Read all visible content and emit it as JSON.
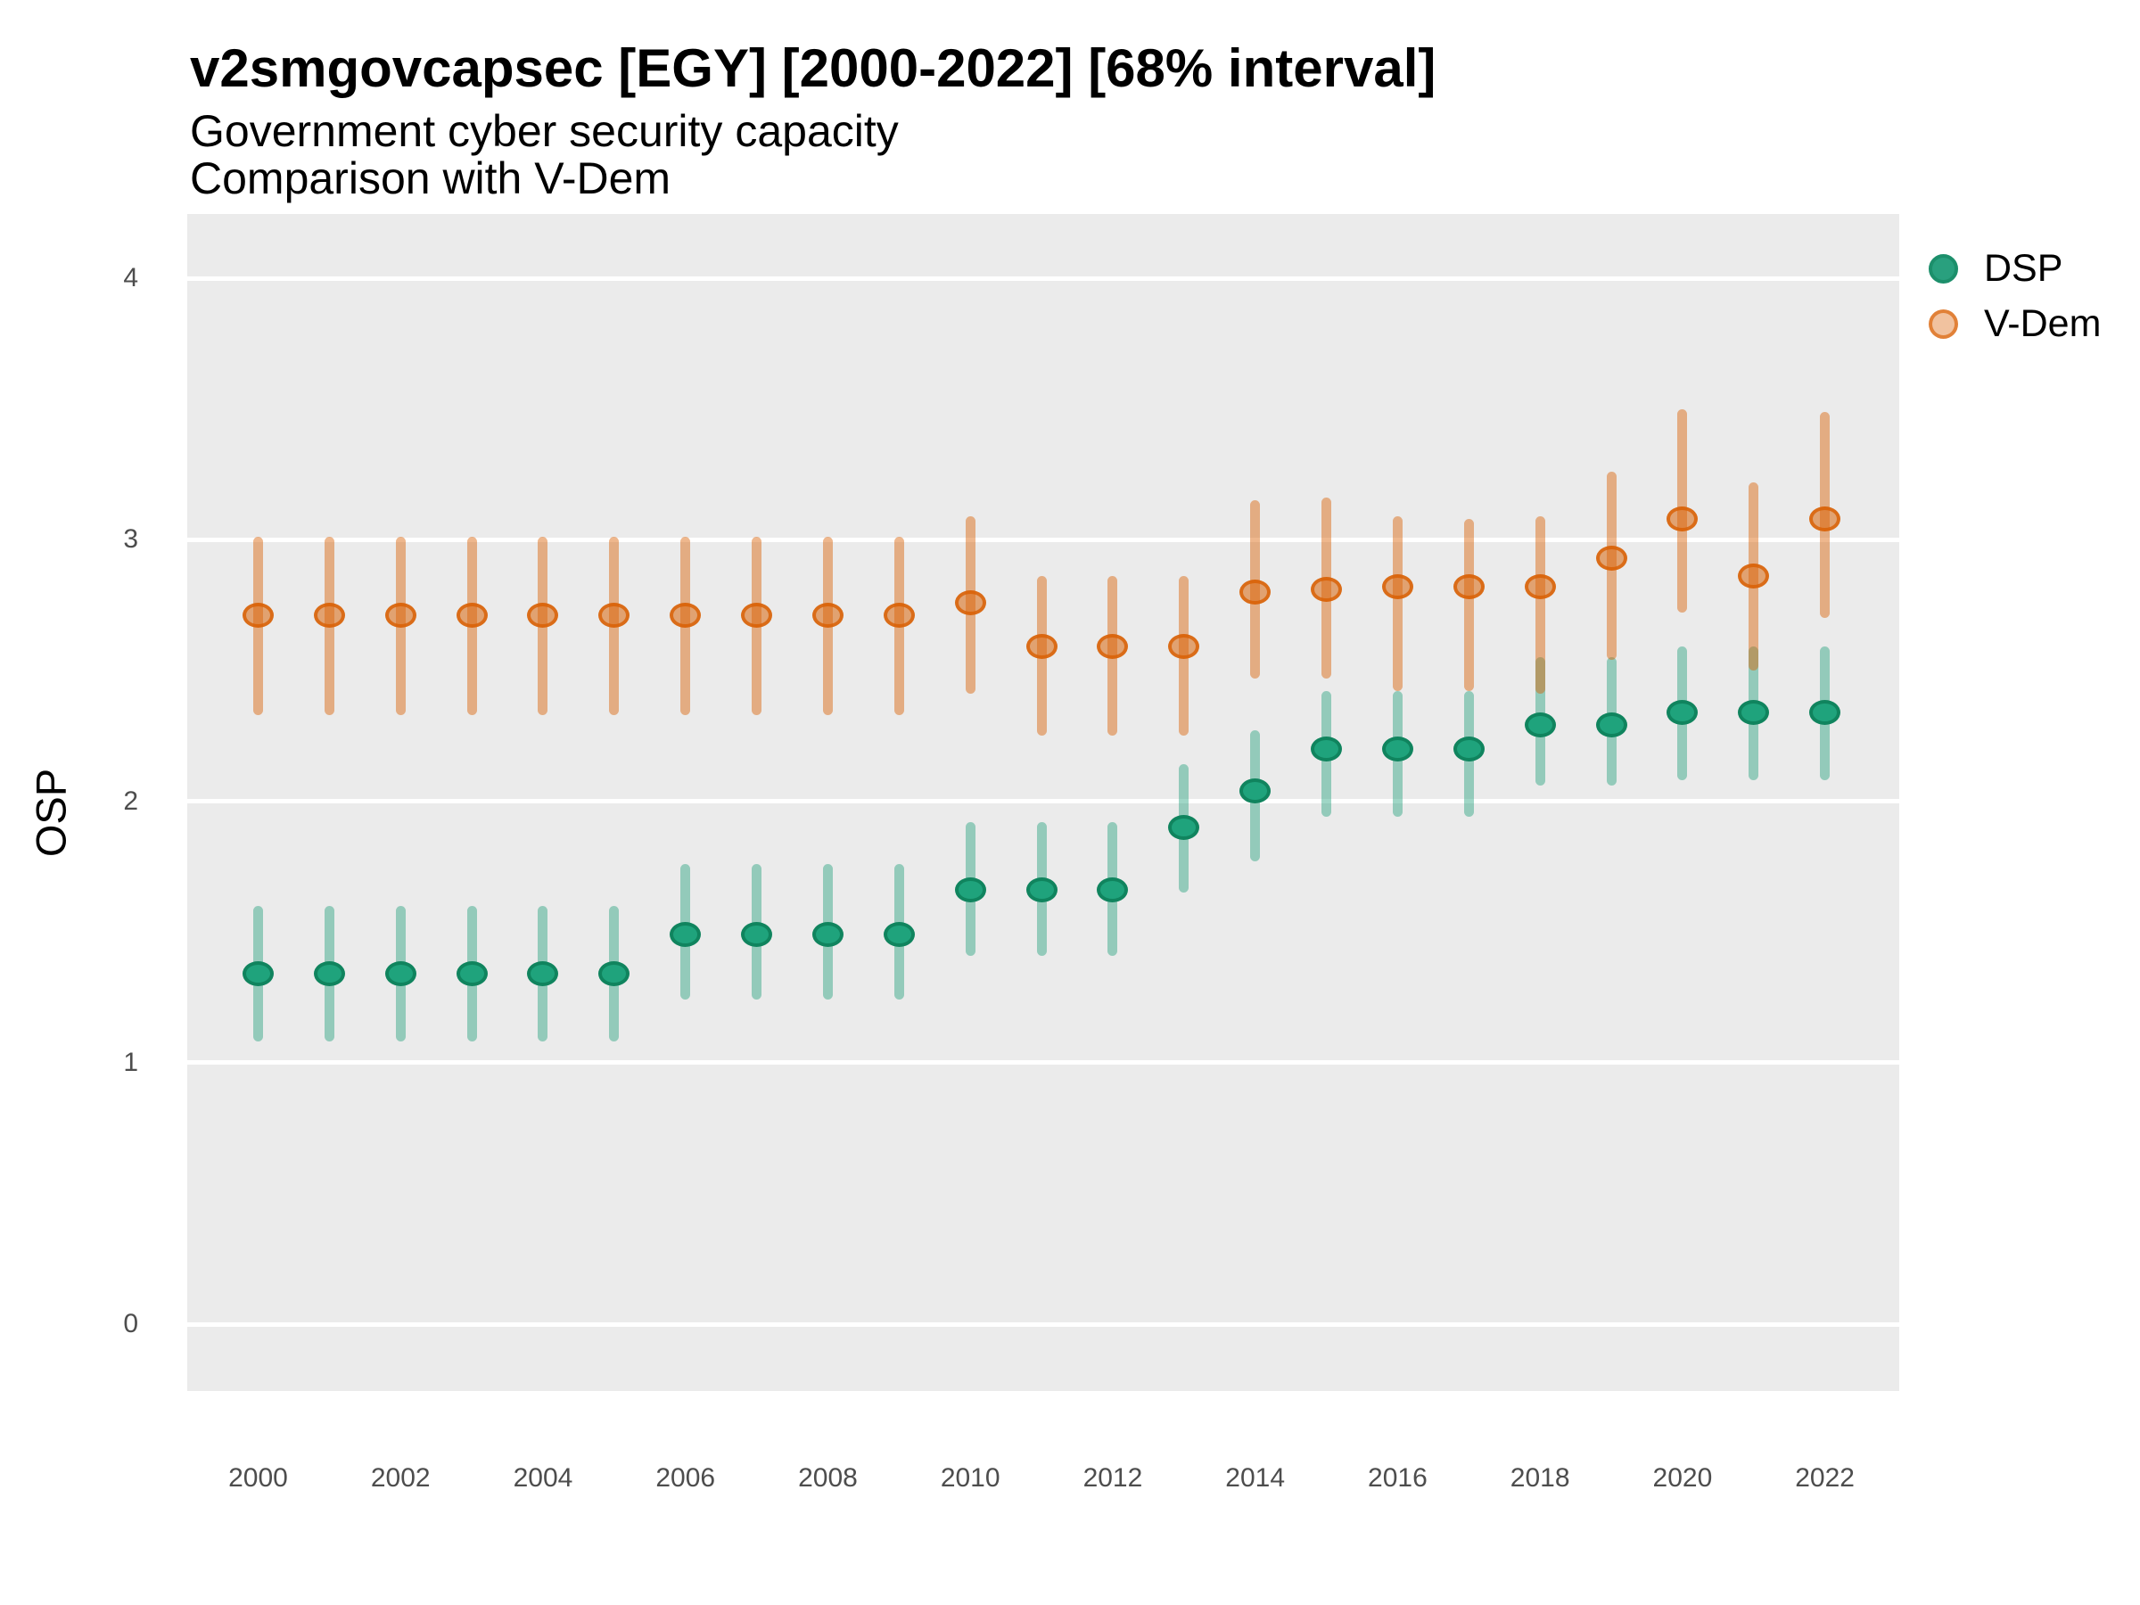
{
  "chart_data": {
    "type": "scatter",
    "subtype": "pointrange-interval",
    "title": "v2smgovcapsec [EGY] [2000-2022] [68% interval]",
    "subtitle": "Government cyber security capacity",
    "subtitle2": "Comparison with V-Dem",
    "xlabel": "",
    "ylabel": "OSP",
    "ylim": [
      -0.26,
      4.26
    ],
    "y_ticks": [
      0,
      1,
      2,
      3,
      4
    ],
    "x_ticks": [
      2000,
      2002,
      2004,
      2006,
      2008,
      2010,
      2012,
      2014,
      2016,
      2018,
      2020,
      2022
    ],
    "grid": "major-horizontal-white-on-gray",
    "panel_background": "#EBEBEB",
    "legend_position": "right-top",
    "legend": [
      {
        "label": "DSP",
        "color": "#1B9E77"
      },
      {
        "label": "V-Dem",
        "color": "#D95F02"
      }
    ],
    "series": [
      {
        "name": "DSP",
        "color": "#1B9E77",
        "points": [
          {
            "year": 2000,
            "est": 1.34,
            "lo": 1.08,
            "hi": 1.6
          },
          {
            "year": 2001,
            "est": 1.34,
            "lo": 1.08,
            "hi": 1.6
          },
          {
            "year": 2002,
            "est": 1.34,
            "lo": 1.08,
            "hi": 1.6
          },
          {
            "year": 2003,
            "est": 1.34,
            "lo": 1.08,
            "hi": 1.6
          },
          {
            "year": 2004,
            "est": 1.34,
            "lo": 1.08,
            "hi": 1.6
          },
          {
            "year": 2005,
            "est": 1.34,
            "lo": 1.08,
            "hi": 1.6
          },
          {
            "year": 2006,
            "est": 1.49,
            "lo": 1.24,
            "hi": 1.76
          },
          {
            "year": 2007,
            "est": 1.49,
            "lo": 1.24,
            "hi": 1.76
          },
          {
            "year": 2008,
            "est": 1.49,
            "lo": 1.24,
            "hi": 1.76
          },
          {
            "year": 2009,
            "est": 1.49,
            "lo": 1.24,
            "hi": 1.76
          },
          {
            "year": 2010,
            "est": 1.66,
            "lo": 1.41,
            "hi": 1.92
          },
          {
            "year": 2011,
            "est": 1.66,
            "lo": 1.41,
            "hi": 1.92
          },
          {
            "year": 2012,
            "est": 1.66,
            "lo": 1.41,
            "hi": 1.92
          },
          {
            "year": 2013,
            "est": 1.9,
            "lo": 1.65,
            "hi": 2.14
          },
          {
            "year": 2014,
            "est": 2.04,
            "lo": 1.77,
            "hi": 2.27
          },
          {
            "year": 2015,
            "est": 2.2,
            "lo": 1.94,
            "hi": 2.42
          },
          {
            "year": 2016,
            "est": 2.2,
            "lo": 1.94,
            "hi": 2.42
          },
          {
            "year": 2017,
            "est": 2.2,
            "lo": 1.94,
            "hi": 2.42
          },
          {
            "year": 2018,
            "est": 2.29,
            "lo": 2.06,
            "hi": 2.55
          },
          {
            "year": 2019,
            "est": 2.29,
            "lo": 2.06,
            "hi": 2.55
          },
          {
            "year": 2020,
            "est": 2.34,
            "lo": 2.08,
            "hi": 2.59
          },
          {
            "year": 2021,
            "est": 2.34,
            "lo": 2.08,
            "hi": 2.59
          },
          {
            "year": 2022,
            "est": 2.34,
            "lo": 2.08,
            "hi": 2.59
          }
        ]
      },
      {
        "name": "V-Dem",
        "color": "#D95F02",
        "points": [
          {
            "year": 2000,
            "est": 2.71,
            "lo": 2.33,
            "hi": 3.01
          },
          {
            "year": 2001,
            "est": 2.71,
            "lo": 2.33,
            "hi": 3.01
          },
          {
            "year": 2002,
            "est": 2.71,
            "lo": 2.33,
            "hi": 3.01
          },
          {
            "year": 2003,
            "est": 2.71,
            "lo": 2.33,
            "hi": 3.01
          },
          {
            "year": 2004,
            "est": 2.71,
            "lo": 2.33,
            "hi": 3.01
          },
          {
            "year": 2005,
            "est": 2.71,
            "lo": 2.33,
            "hi": 3.01
          },
          {
            "year": 2006,
            "est": 2.71,
            "lo": 2.33,
            "hi": 3.01
          },
          {
            "year": 2007,
            "est": 2.71,
            "lo": 2.33,
            "hi": 3.01
          },
          {
            "year": 2008,
            "est": 2.71,
            "lo": 2.33,
            "hi": 3.01
          },
          {
            "year": 2009,
            "est": 2.71,
            "lo": 2.33,
            "hi": 3.01
          },
          {
            "year": 2010,
            "est": 2.76,
            "lo": 2.41,
            "hi": 3.09
          },
          {
            "year": 2011,
            "est": 2.59,
            "lo": 2.25,
            "hi": 2.86
          },
          {
            "year": 2012,
            "est": 2.59,
            "lo": 2.25,
            "hi": 2.86
          },
          {
            "year": 2013,
            "est": 2.59,
            "lo": 2.25,
            "hi": 2.86
          },
          {
            "year": 2014,
            "est": 2.8,
            "lo": 2.47,
            "hi": 3.15
          },
          {
            "year": 2015,
            "est": 2.81,
            "lo": 2.47,
            "hi": 3.16
          },
          {
            "year": 2016,
            "est": 2.82,
            "lo": 2.42,
            "hi": 3.09
          },
          {
            "year": 2017,
            "est": 2.82,
            "lo": 2.42,
            "hi": 3.08
          },
          {
            "year": 2018,
            "est": 2.82,
            "lo": 2.41,
            "hi": 3.09
          },
          {
            "year": 2019,
            "est": 2.93,
            "lo": 2.54,
            "hi": 3.26
          },
          {
            "year": 2020,
            "est": 3.08,
            "lo": 2.72,
            "hi": 3.5
          },
          {
            "year": 2021,
            "est": 2.86,
            "lo": 2.5,
            "hi": 3.22
          },
          {
            "year": 2022,
            "est": 3.08,
            "lo": 2.7,
            "hi": 3.49
          }
        ]
      }
    ]
  }
}
